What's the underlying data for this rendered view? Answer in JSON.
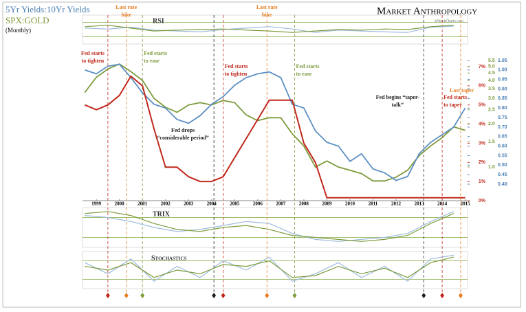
{
  "chart_data": {
    "type": "line",
    "title": "5Yr Yields:10Yr Yields",
    "subtitle": "(Monthly)",
    "brand": "Market Anthropology",
    "source": "©StockCharts.com",
    "x": [
      1998.5,
      1999,
      1999.5,
      2000,
      2000.5,
      2001,
      2001.5,
      2002,
      2002.5,
      2003,
      2003.5,
      2004,
      2004.5,
      2005,
      2005.5,
      2006,
      2006.5,
      2007,
      2007.5,
      2008,
      2008.5,
      2009,
      2009.5,
      2010,
      2010.5,
      2011,
      2011.5,
      2012,
      2012.5,
      2013,
      2013.5,
      2014,
      2014.5,
      2015
    ],
    "xlim": [
      1998.4,
      2015.1
    ],
    "xticks": [
      1999,
      2000,
      2001,
      2002,
      2003,
      2004,
      2005,
      2006,
      2007,
      2008,
      2009,
      2010,
      2011,
      2012,
      2013,
      2014,
      2015
    ],
    "series": [
      {
        "name": "5Yr Yields:10Yr Yields",
        "color": "#5b8fc4",
        "axis": "y2",
        "values": [
          1.0,
          0.98,
          1.02,
          1.03,
          0.96,
          0.88,
          0.82,
          0.8,
          0.74,
          0.72,
          0.76,
          0.82,
          0.86,
          0.92,
          0.96,
          0.98,
          0.99,
          0.96,
          0.82,
          0.8,
          0.68,
          0.62,
          0.6,
          0.52,
          0.56,
          0.48,
          0.46,
          0.42,
          0.44,
          0.56,
          0.62,
          0.66,
          0.7,
          0.8
        ]
      },
      {
        "name": "SPX:GOLD",
        "color": "#7d9b3a",
        "axis": "y3",
        "values": [
          3.3,
          4.2,
          4.8,
          5.2,
          4.6,
          4.0,
          3.0,
          2.6,
          2.4,
          2.7,
          2.8,
          2.7,
          2.9,
          2.8,
          2.3,
          2.1,
          2.2,
          2.2,
          1.7,
          1.4,
          1.0,
          1.1,
          1.0,
          0.95,
          0.9,
          0.8,
          0.8,
          0.85,
          0.95,
          1.2,
          1.4,
          1.6,
          1.9,
          1.8
        ]
      },
      {
        "color": "#c0281c",
        "axis": "y",
        "values": [
          5.0,
          4.75,
          5.0,
          5.5,
          6.5,
          6.0,
          3.75,
          1.75,
          1.75,
          1.25,
          1.0,
          1.0,
          1.25,
          2.25,
          3.25,
          4.25,
          5.25,
          5.25,
          5.25,
          3.0,
          2.0,
          0.15,
          0.15,
          0.15,
          0.15,
          0.15,
          0.15,
          0.15,
          0.15,
          0.15,
          0.15,
          0.15,
          0.15,
          0.15
        ]
      }
    ],
    "ylim": [
      0,
      7
    ],
    "yticks": [
      {
        "value": 0,
        "label": "0%"
      },
      {
        "value": 1,
        "label": "1%"
      },
      {
        "value": 2,
        "label": "2%"
      },
      {
        "value": 3,
        "label": "3%"
      },
      {
        "value": 4,
        "label": "4%"
      },
      {
        "value": 5,
        "label": "5%"
      },
      {
        "value": 6,
        "label": "6%"
      },
      {
        "value": 7,
        "label": "7%"
      }
    ],
    "y2lim": [
      0.4,
      1.05
    ],
    "y2ticks": [
      {
        "value": 0.4,
        "label": "0.40"
      },
      0.45,
      {
        "value": 0.5,
        "label": "0.50"
      },
      0.55,
      {
        "value": 0.6,
        "label": "0.60"
      },
      0.65,
      {
        "value": 0.7,
        "label": "0.70"
      },
      0.75,
      {
        "value": 0.8,
        "label": "0.80"
      },
      0.85,
      {
        "value": 0.9,
        "label": "0.90"
      },
      0.95,
      {
        "value": 1,
        "label": "1.00"
      },
      1.05
    ],
    "y3lim": [
      1,
      5.5
    ],
    "y3log": true,
    "y3ticks": [
      {
        "value": 1,
        "label": "1.0"
      },
      1.5,
      {
        "value": 2,
        "label": "2.0"
      },
      2.5,
      {
        "value": 3,
        "label": "3.0"
      },
      3.5,
      {
        "value": 4,
        "label": "4.0"
      },
      4.5,
      {
        "value": 5,
        "label": "5.0"
      },
      5.5
    ],
    "events": [
      {
        "x": 1999.5,
        "label": [
          "Fed starts",
          "to tighten"
        ],
        "color": "#c0281c"
      },
      {
        "x": 2000.3,
        "label": [
          "Last rate",
          "hike"
        ],
        "color": "#e67e22"
      },
      {
        "x": 2001.0,
        "label": [
          "Fed starts",
          "to ease"
        ],
        "color": "#7d9b3a"
      },
      {
        "x": 2004.1,
        "label": [
          "Fed drops",
          "“considerable period”"
        ],
        "color": "#222222"
      },
      {
        "x": 2004.5,
        "label": [
          "Fed starts",
          "to tighten"
        ],
        "color": "#c0281c"
      },
      {
        "x": 2006.4,
        "label": [
          "Last rate",
          "hike"
        ],
        "color": "#e67e22"
      },
      {
        "x": 2007.6,
        "label": [
          "Fed starts",
          "to ease"
        ],
        "color": "#7d9b3a"
      },
      {
        "x": 2013.2,
        "label": [
          "Fed begins “taper-",
          "talk”"
        ],
        "color": "#222222"
      },
      {
        "x": 2014.0,
        "label": [
          "Fed starts",
          "to taper"
        ],
        "color": "#c0281c"
      },
      {
        "x": 2014.8,
        "label": [
          "Last taper"
        ],
        "color": "#e67e22"
      }
    ],
    "panels": [
      {
        "title": "RSI",
        "ylim": [
          0,
          100
        ],
        "x": [
          1998.5,
          1999.5,
          2000.5,
          2001.5,
          2002.5,
          2003.5,
          2004.5,
          2005.5,
          2006.5,
          2007.5,
          2008.5,
          2009.5,
          2010.5,
          2011.5,
          2012.5,
          2013.5,
          2014.5
        ],
        "series": [
          {
            "color": "#9dbbdc",
            "values": [
              55,
              52,
              58,
              48,
              45,
              42,
              50,
              55,
              60,
              52,
              40,
              48,
              45,
              42,
              40,
              58,
              62
            ]
          },
          {
            "color": "#7d9b3a",
            "values": [
              60,
              65,
              55,
              45,
              48,
              50,
              52,
              48,
              45,
              40,
              45,
              50,
              48,
              52,
              50,
              60,
              65
            ]
          }
        ]
      },
      {
        "title": "TRIX",
        "ylim": [
          -1,
          1
        ],
        "x": [
          1998.5,
          1999.5,
          2000.5,
          2001.5,
          2002.5,
          2003.5,
          2004.5,
          2005.5,
          2006.5,
          2007.5,
          2008.5,
          2009.5,
          2010.5,
          2011.5,
          2012.5,
          2013.5,
          2014.5
        ],
        "series": [
          {
            "color": "#9dbbdc",
            "values": [
              0.6,
              0.5,
              0.3,
              0.0,
              -0.2,
              -0.1,
              0.1,
              0.3,
              0.2,
              -0.3,
              -0.6,
              -0.7,
              -0.6,
              -0.5,
              -0.3,
              0.3,
              0.8
            ]
          },
          {
            "color": "#7d9b3a",
            "values": [
              0.7,
              0.8,
              0.6,
              0.2,
              -0.1,
              -0.2,
              0.0,
              0.1,
              -0.1,
              -0.4,
              -0.5,
              -0.6,
              -0.7,
              -0.6,
              -0.4,
              0.2,
              0.7
            ]
          }
        ]
      },
      {
        "title": "Stochastics",
        "ylim": [
          0,
          100
        ],
        "x": [
          1998.5,
          1999.5,
          2000.5,
          2001.5,
          2002.5,
          2003.5,
          2004.5,
          2005.5,
          2006.5,
          2007.5,
          2008.5,
          2009.5,
          2010.5,
          2011.5,
          2012.5,
          2013.5,
          2014.5
        ],
        "series": [
          {
            "color": "#9dbbdc",
            "values": [
              70,
              40,
              80,
              20,
              60,
              30,
              75,
              50,
              85,
              20,
              40,
              70,
              30,
              60,
              20,
              80,
              90
            ]
          },
          {
            "color": "#7d9b3a",
            "values": [
              60,
              50,
              70,
              30,
              50,
              40,
              65,
              60,
              75,
              30,
              35,
              60,
              40,
              55,
              30,
              70,
              85
            ]
          }
        ]
      }
    ]
  }
}
